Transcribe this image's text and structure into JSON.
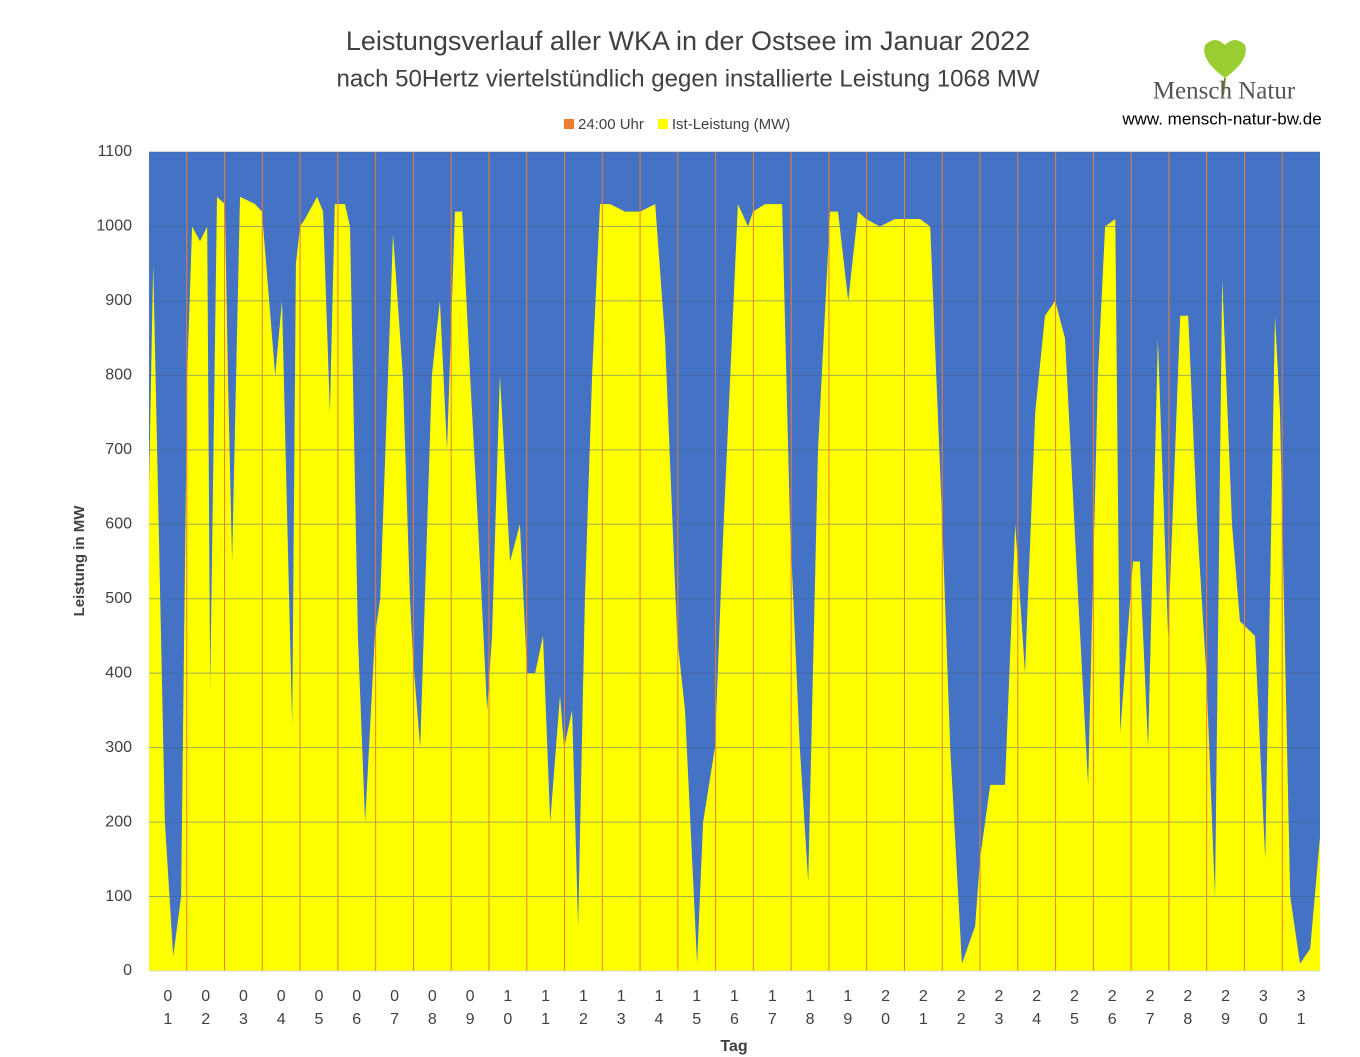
{
  "chart_data": {
    "type": "area",
    "title": "Leistungsverlauf aller WKA in der Ostsee im Januar 2022",
    "subtitle": "nach 50Hertz viertelstündlich gegen installierte Leistung 1068 MW",
    "brand": "Mensch Natur",
    "website": "www. mensch-natur-bw.de",
    "y_label": "Leistung in MW",
    "x_label": "Tag",
    "background_color": "#4472c4",
    "grid": true,
    "legend": "top",
    "xlim": [
      0,
      31
    ],
    "ylim": [
      0,
      1100
    ],
    "yticks": [
      0,
      100,
      200,
      300,
      400,
      500,
      600,
      700,
      800,
      900,
      1000,
      1100
    ],
    "xticks": [
      {
        "value": 0.5,
        "label": "01"
      },
      {
        "value": 1.5,
        "label": "02"
      },
      {
        "value": 2.5,
        "label": "03"
      },
      {
        "value": 3.5,
        "label": "04"
      },
      {
        "value": 4.5,
        "label": "05"
      },
      {
        "value": 5.5,
        "label": "06"
      },
      {
        "value": 6.5,
        "label": "07"
      },
      {
        "value": 7.5,
        "label": "08"
      },
      {
        "value": 8.5,
        "label": "09"
      },
      {
        "value": 9.5,
        "label": "10"
      },
      {
        "value": 10.5,
        "label": "11"
      },
      {
        "value": 11.5,
        "label": "12"
      },
      {
        "value": 12.5,
        "label": "13"
      },
      {
        "value": 13.5,
        "label": "14"
      },
      {
        "value": 14.5,
        "label": "15"
      },
      {
        "value": 15.5,
        "label": "16"
      },
      {
        "value": 16.5,
        "label": "17"
      },
      {
        "value": 17.5,
        "label": "18"
      },
      {
        "value": 18.5,
        "label": "19"
      },
      {
        "value": 19.5,
        "label": "20"
      },
      {
        "value": 20.5,
        "label": "21"
      },
      {
        "value": 21.5,
        "label": "22"
      },
      {
        "value": 22.5,
        "label": "23"
      },
      {
        "value": 23.5,
        "label": "24"
      },
      {
        "value": 24.5,
        "label": "25"
      },
      {
        "value": 25.5,
        "label": "26"
      },
      {
        "value": 26.5,
        "label": "27"
      },
      {
        "value": 27.5,
        "label": "28"
      },
      {
        "value": 28.5,
        "label": "29"
      },
      {
        "value": 29.5,
        "label": "30"
      },
      {
        "value": 30.5,
        "label": "31"
      }
    ],
    "series": [
      {
        "name": "24:00 Uhr",
        "color": "#ed7d31",
        "x": [
          1,
          2,
          3,
          4,
          5,
          6,
          7,
          8,
          9,
          10,
          11,
          12,
          13,
          14,
          15,
          16,
          17,
          18,
          19,
          20,
          21,
          22,
          23,
          24,
          25,
          26,
          27,
          28,
          29,
          30
        ],
        "values": [
          1100,
          1100,
          1100,
          1100,
          1100,
          1100,
          1100,
          1100,
          1100,
          1100,
          1100,
          1100,
          1100,
          1100,
          1100,
          1100,
          1100,
          1100,
          1100,
          1100,
          1100,
          1100,
          1100,
          1100,
          1100,
          1100,
          1100,
          1100,
          1100,
          1100
        ]
      },
      {
        "name": "Ist-Leistung (MW)",
        "color": "#ffff00",
        "x": [
          0,
          0.11,
          0.42,
          0.64,
          0.85,
          1.01,
          1.14,
          1.35,
          1.54,
          1.62,
          1.8,
          2.01,
          2.09,
          2.2,
          2.41,
          2.81,
          2.99,
          3.34,
          3.52,
          3.71,
          3.79,
          3.89,
          4.0,
          4.13,
          4.45,
          4.61,
          4.79,
          4.92,
          5.19,
          5.32,
          5.53,
          5.72,
          5.98,
          6.12,
          6.46,
          6.72,
          6.91,
          6.99,
          7.18,
          7.49,
          7.7,
          7.89,
          8.1,
          8.29,
          8.5,
          8.71,
          8.95,
          9.08,
          9.29,
          9.56,
          9.82,
          10.01,
          10.22,
          10.43,
          10.62,
          10.88,
          10.99,
          11.2,
          11.36,
          11.54,
          11.73,
          11.94,
          12.21,
          12.6,
          13.0,
          13.4,
          13.66,
          13.98,
          14.19,
          14.51,
          14.67,
          14.98,
          15.17,
          15.59,
          15.86,
          15.99,
          16.31,
          16.76,
          16.97,
          17.23,
          17.45,
          17.71,
          18.03,
          18.24,
          18.51,
          18.77,
          18.98,
          19.35,
          19.75,
          19.99,
          20.41,
          20.68,
          21.0,
          21.21,
          21.52,
          21.87,
          22.0,
          22.27,
          22.66,
          22.93,
          23.19,
          23.46,
          23.72,
          23.99,
          24.25,
          24.6,
          24.86,
          25.12,
          25.31,
          25.58,
          25.71,
          26.05,
          26.23,
          26.45,
          26.71,
          26.98,
          27.3,
          27.51,
          27.75,
          27.99,
          28.22,
          28.41,
          28.67,
          28.88,
          29.28,
          29.55,
          29.81,
          29.94,
          30.21,
          30.47,
          30.74,
          31.0
        ],
        "values": [
          650,
          950,
          200,
          20,
          100,
          800,
          1000,
          980,
          1000,
          380,
          1040,
          1030,
          800,
          550,
          1040,
          1030,
          1020,
          800,
          900,
          500,
          330,
          950,
          1000,
          1010,
          1040,
          1020,
          750,
          1030,
          1030,
          1000,
          450,
          200,
          450,
          500,
          990,
          800,
          500,
          420,
          300,
          800,
          900,
          700,
          1020,
          1020,
          800,
          600,
          350,
          450,
          800,
          550,
          600,
          400,
          400,
          450,
          200,
          370,
          300,
          350,
          60,
          500,
          800,
          1030,
          1030,
          1020,
          1020,
          1030,
          850,
          450,
          350,
          10,
          200,
          300,
          550,
          1030,
          1000,
          1020,
          1030,
          1030,
          600,
          300,
          120,
          700,
          1020,
          1020,
          900,
          1020,
          1010,
          1000,
          1010,
          1010,
          1010,
          1000,
          600,
          300,
          10,
          60,
          150,
          250,
          250,
          600,
          400,
          750,
          880,
          900,
          850,
          500,
          250,
          800,
          1000,
          1010,
          320,
          550,
          550,
          300,
          850,
          450,
          880,
          880,
          600,
          400,
          100,
          930,
          600,
          470,
          450,
          150,
          880,
          750,
          100,
          10,
          30,
          180
        ]
      }
    ]
  }
}
